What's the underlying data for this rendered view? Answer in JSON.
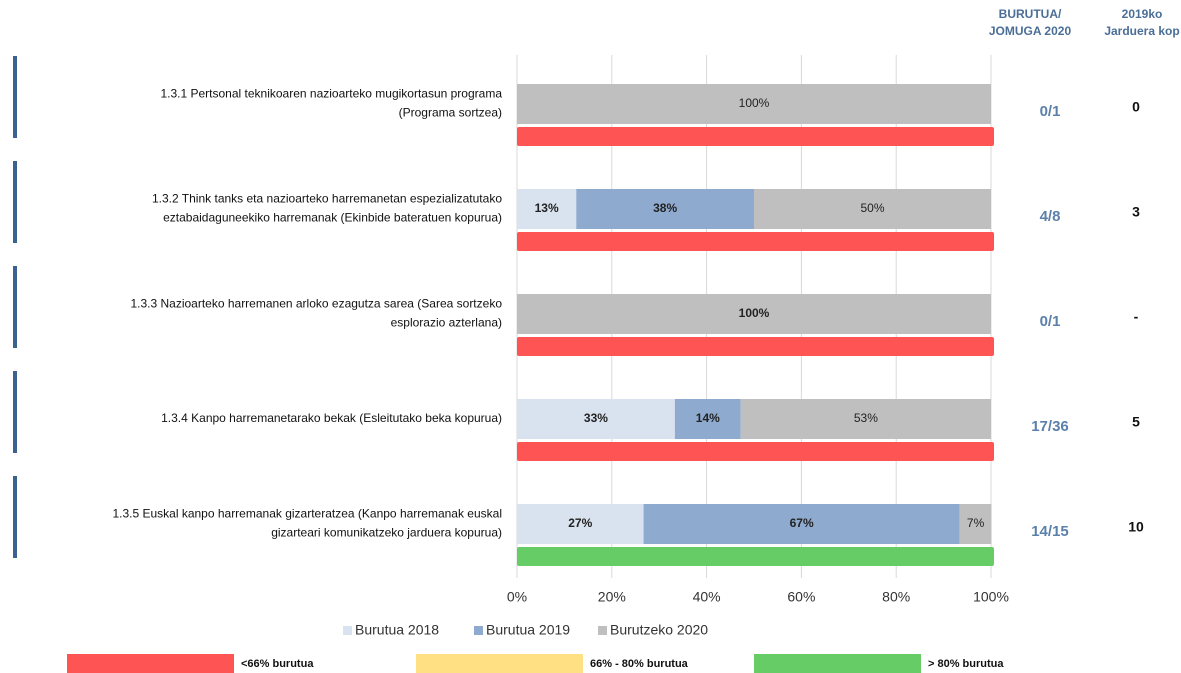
{
  "chart_data": {
    "type": "stacked-bar-horizontal",
    "categories": [
      [
        "1.3.1 Pertsonal teknikoaren nazioarteko mugikortasun programa",
        "(Programa sortzea)"
      ],
      [
        "1.3.2 Think tanks eta nazioarteko harremanetan espezializatutako",
        "eztabaidaguneekiko harremanak (Ekinbide bateratuen kopurua)"
      ],
      [
        "1.3.3 Nazioarteko harremanen arloko ezagutza sarea (Sarea sortzeko",
        "esplorazio azterlana)"
      ],
      [
        "1.3.4 Kanpo harremanetarako bekak (Esleitutako beka kopurua)"
      ],
      [
        "1.3.5 Euskal kanpo harremanak gizarteratzea (Kanpo harremanak euskal",
        "gizarteari komunikatzeko jarduera kopurua)"
      ]
    ],
    "series": [
      {
        "name": "Burutua 2018",
        "color": "#d9e2ef",
        "values": [
          0,
          12.5,
          0,
          33.3,
          26.7
        ],
        "value_labels": [
          null,
          "13%",
          null,
          "33%",
          "27%"
        ]
      },
      {
        "name": "Burutua 2019",
        "color": "#8eaacf",
        "values": [
          0,
          37.5,
          0,
          13.9,
          66.7
        ],
        "value_labels": [
          null,
          "38%",
          null,
          "14%",
          "67%"
        ]
      },
      {
        "name": "Burutzeko 2020",
        "color": "#bfbfbf",
        "values": [
          100,
          50,
          100,
          52.8,
          6.7
        ],
        "value_labels": [
          "100%",
          "50%",
          "100%",
          "53%",
          "7%"
        ]
      }
    ],
    "xlim": [
      0,
      100
    ],
    "xticks": [
      {
        "value": 0,
        "label": "0%"
      },
      {
        "value": 20,
        "label": "20%"
      },
      {
        "value": 40,
        "label": "40%"
      },
      {
        "value": 60,
        "label": "60%"
      },
      {
        "value": 80,
        "label": "80%"
      },
      {
        "value": 100,
        "label": "100%"
      }
    ],
    "grid": true,
    "status_colors": [
      "#fe5454",
      "#fe5454",
      "#fe5454",
      "#fe5454",
      "#66cc66"
    ],
    "status_legend": [
      {
        "label": "<66% burutua",
        "color": "#fe5454"
      },
      {
        "label": "66% - 80% burutua",
        "color": "#ffe082"
      },
      {
        "label": "> 80% burutua",
        "color": "#66cc66"
      }
    ],
    "columns": [
      {
        "header": [
          "BURUTUA/",
          "JOMUGA 2020"
        ],
        "values": [
          "0/1",
          "4/8",
          "0/1",
          "17/36",
          "14/15"
        ]
      },
      {
        "header": [
          "2019ko",
          "Jarduera kop"
        ],
        "values": [
          "0",
          "3",
          "-",
          "5",
          "10"
        ]
      }
    ]
  }
}
